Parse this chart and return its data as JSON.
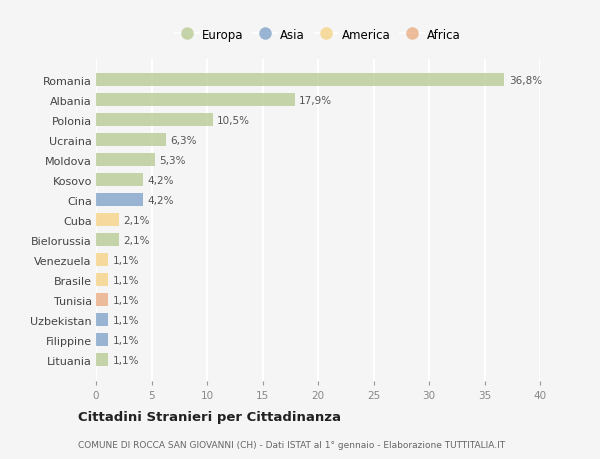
{
  "countries": [
    "Romania",
    "Albania",
    "Polonia",
    "Ucraina",
    "Moldova",
    "Kosovo",
    "Cina",
    "Cuba",
    "Bielorussia",
    "Venezuela",
    "Brasile",
    "Tunisia",
    "Uzbekistan",
    "Filippine",
    "Lituania"
  ],
  "values": [
    36.8,
    17.9,
    10.5,
    6.3,
    5.3,
    4.2,
    4.2,
    2.1,
    2.1,
    1.1,
    1.1,
    1.1,
    1.1,
    1.1,
    1.1
  ],
  "labels": [
    "36,8%",
    "17,9%",
    "10,5%",
    "6,3%",
    "5,3%",
    "4,2%",
    "4,2%",
    "2,1%",
    "2,1%",
    "1,1%",
    "1,1%",
    "1,1%",
    "1,1%",
    "1,1%",
    "1,1%"
  ],
  "continents": [
    "Europa",
    "Europa",
    "Europa",
    "Europa",
    "Europa",
    "Europa",
    "Asia",
    "America",
    "Europa",
    "America",
    "America",
    "Africa",
    "Asia",
    "Asia",
    "Europa"
  ],
  "colors": {
    "Europa": "#b5c98e",
    "Asia": "#7b9ec7",
    "America": "#f5d080",
    "Africa": "#e8a87c"
  },
  "legend_order": [
    "Europa",
    "Asia",
    "America",
    "Africa"
  ],
  "title": "Cittadini Stranieri per Cittadinanza",
  "subtitle": "COMUNE DI ROCCA SAN GIOVANNI (CH) - Dati ISTAT al 1° gennaio - Elaborazione TUTTITALIA.IT",
  "xlim": [
    0,
    40
  ],
  "xticks": [
    0,
    5,
    10,
    15,
    20,
    25,
    30,
    35,
    40
  ],
  "background_color": "#f5f5f5",
  "grid_color": "#ffffff",
  "bar_alpha": 0.75
}
